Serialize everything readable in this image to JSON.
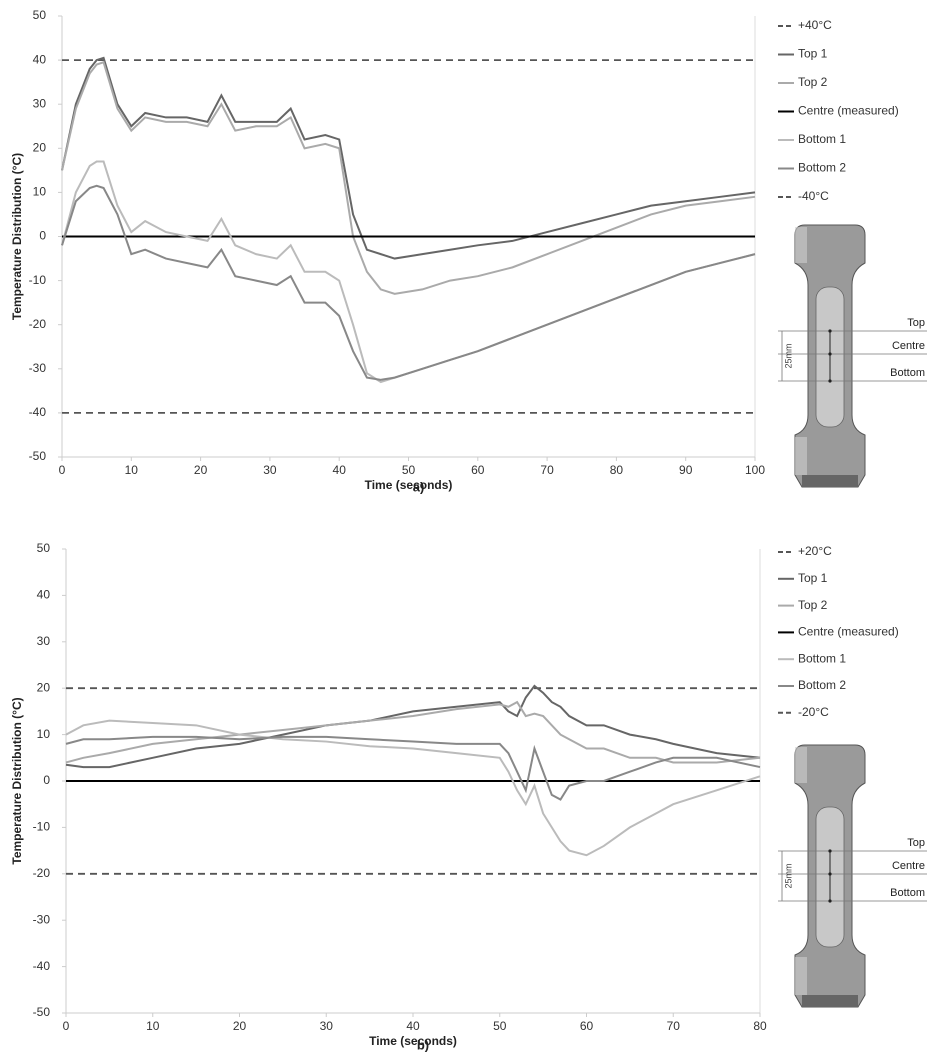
{
  "chart_data": [
    {
      "type": "line",
      "label": "a)",
      "x_label": "Time (seconds)",
      "y_label": "Temperature Distribution (°C)",
      "x": [
        0,
        2,
        4,
        5,
        6,
        8,
        10,
        12,
        15,
        18,
        21,
        23,
        25,
        28,
        31,
        33,
        35,
        38,
        40,
        42,
        44,
        46,
        48,
        52,
        56,
        60,
        65,
        70,
        75,
        80,
        85,
        90,
        95,
        100
      ],
      "series": [
        {
          "name": "+40°C",
          "color": "#555555",
          "dash": true,
          "values": [
            40,
            40,
            40,
            40,
            40,
            40,
            40,
            40,
            40,
            40,
            40,
            40,
            40,
            40,
            40,
            40,
            40,
            40,
            40,
            40,
            40,
            40,
            40,
            40,
            40,
            40,
            40,
            40,
            40,
            40,
            40,
            40,
            40,
            40
          ]
        },
        {
          "name": "Top 1",
          "color": "#666666",
          "values": [
            15,
            30,
            38,
            40,
            40.5,
            30,
            25,
            28,
            27,
            27,
            26,
            32,
            26,
            26,
            26,
            29,
            22,
            23,
            22,
            5,
            -3,
            -4,
            -5,
            -4,
            -3,
            -2,
            -1,
            1,
            3,
            5,
            7,
            8,
            9,
            10
          ]
        },
        {
          "name": "Top 2",
          "color": "#aaaaaa",
          "values": [
            15,
            29,
            37,
            39,
            39.5,
            29,
            24,
            27,
            26,
            26,
            25,
            30,
            24,
            25,
            25,
            27,
            20,
            21,
            20,
            0,
            -8,
            -12,
            -13,
            -12,
            -10,
            -9,
            -7,
            -4,
            -1,
            2,
            5,
            7,
            8,
            9
          ]
        },
        {
          "name": "Centre (measured)",
          "color": "#000000",
          "values": [
            0,
            0,
            0,
            0,
            0,
            0,
            0,
            0,
            0,
            0,
            0,
            0,
            0,
            0,
            0,
            0,
            0,
            0,
            0,
            0,
            0,
            0,
            0,
            0,
            0,
            0,
            0,
            0,
            0,
            0,
            0,
            0,
            0,
            0
          ]
        },
        {
          "name": "Bottom 1",
          "color": "#bbbbbb",
          "values": [
            -2,
            10,
            16,
            17,
            17,
            7,
            1,
            3.5,
            1,
            0,
            -1,
            4,
            -2,
            -4,
            -5,
            -2,
            -8,
            -8,
            -10,
            -20,
            -31,
            -33,
            -32,
            -30,
            -28,
            -26,
            -23,
            -20,
            -17,
            -14,
            -11,
            -8,
            -6,
            -4
          ]
        },
        {
          "name": "Bottom 2",
          "color": "#888888",
          "values": [
            -2,
            8,
            11,
            11.5,
            11,
            5,
            -4,
            -3,
            -5,
            -6,
            -7,
            -3,
            -9,
            -10,
            -11,
            -9,
            -15,
            -15,
            -18,
            -26,
            -32,
            -32.5,
            -32,
            -30,
            -28,
            -26,
            -23,
            -20,
            -17,
            -14,
            -11,
            -8,
            -6,
            -4
          ]
        },
        {
          "name": "-40°C",
          "color": "#555555",
          "dash": true,
          "values": [
            -40,
            -40,
            -40,
            -40,
            -40,
            -40,
            -40,
            -40,
            -40,
            -40,
            -40,
            -40,
            -40,
            -40,
            -40,
            -40,
            -40,
            -40,
            -40,
            -40,
            -40,
            -40,
            -40,
            -40,
            -40,
            -40,
            -40,
            -40,
            -40,
            -40,
            -40,
            -40,
            -40,
            -40
          ]
        }
      ],
      "xlim": [
        0,
        100
      ],
      "xticks": [
        0,
        10,
        20,
        30,
        40,
        50,
        60,
        70,
        80,
        90,
        100
      ],
      "ylim": [
        -50,
        50
      ],
      "yticks": [
        -50,
        -40,
        -30,
        -20,
        -10,
        0,
        10,
        20,
        30,
        40,
        50
      ],
      "grid": false,
      "legend": "right",
      "annotations": [
        "Top",
        "Centre",
        "Bottom",
        "25mm"
      ]
    },
    {
      "type": "line",
      "label": "b)",
      "x_label": "Time (seconds)",
      "y_label": "Temperature Distribution (°C)",
      "x": [
        0,
        2,
        5,
        10,
        15,
        20,
        25,
        30,
        35,
        40,
        45,
        50,
        51,
        52,
        53,
        54,
        55,
        56,
        57,
        58,
        60,
        62,
        65,
        68,
        70,
        75,
        80
      ],
      "series": [
        {
          "name": "+20°C",
          "color": "#555555",
          "dash": true,
          "values": [
            20,
            20,
            20,
            20,
            20,
            20,
            20,
            20,
            20,
            20,
            20,
            20,
            20,
            20,
            20,
            20,
            20,
            20,
            20,
            20,
            20,
            20,
            20,
            20,
            20,
            20,
            20
          ]
        },
        {
          "name": "Top 1",
          "color": "#666666",
          "values": [
            3.5,
            3,
            3,
            5,
            7,
            8,
            10,
            12,
            13,
            15,
            16,
            17,
            15,
            14,
            18,
            20.5,
            19,
            17,
            16,
            14,
            12,
            12,
            10,
            9,
            8,
            6,
            5
          ]
        },
        {
          "name": "Top 2",
          "color": "#aaaaaa",
          "values": [
            4,
            5,
            6,
            8,
            9,
            10,
            11,
            12,
            13,
            14,
            15.5,
            16.5,
            16,
            17,
            14,
            14.5,
            14,
            12,
            10,
            9,
            7,
            7,
            5,
            5,
            4,
            4,
            5
          ]
        },
        {
          "name": "Centre (measured)",
          "color": "#000000",
          "values": [
            0,
            0,
            0,
            0,
            0,
            0,
            0,
            0,
            0,
            0,
            0,
            0,
            0,
            0,
            0,
            0,
            0,
            0,
            0,
            0,
            0,
            0,
            0,
            0,
            0,
            0,
            0
          ]
        },
        {
          "name": "Bottom 1",
          "color": "#bbbbbb",
          "values": [
            10,
            12,
            13,
            12.5,
            12,
            10,
            9,
            8.5,
            7.5,
            7,
            6,
            5,
            2,
            -2,
            -5,
            -1,
            -7,
            -10,
            -13,
            -15,
            -16,
            -14,
            -10,
            -7,
            -5,
            -2,
            1
          ]
        },
        {
          "name": "Bottom 2",
          "color": "#888888",
          "values": [
            8,
            9,
            9,
            9.5,
            9.5,
            9,
            9.5,
            9.5,
            9,
            8.5,
            8,
            8,
            6,
            2,
            -2,
            7,
            2,
            -3,
            -4,
            -1,
            0,
            0,
            2,
            4,
            5,
            5,
            3
          ]
        },
        {
          "name": "-20°C",
          "color": "#555555",
          "dash": true,
          "values": [
            -20,
            -20,
            -20,
            -20,
            -20,
            -20,
            -20,
            -20,
            -20,
            -20,
            -20,
            -20,
            -20,
            -20,
            -20,
            -20,
            -20,
            -20,
            -20,
            -20,
            -20,
            -20,
            -20,
            -20,
            -20,
            -20,
            -20
          ]
        }
      ],
      "xlim": [
        0,
        80
      ],
      "xticks": [
        0,
        10,
        20,
        30,
        40,
        50,
        60,
        70,
        80
      ],
      "ylim": [
        -50,
        50
      ],
      "yticks": [
        -50,
        -40,
        -30,
        -20,
        -10,
        0,
        10,
        20,
        30,
        40,
        50
      ],
      "grid": false,
      "legend": "right",
      "annotations": [
        "Top",
        "Centre",
        "Bottom",
        "25mm"
      ]
    }
  ]
}
